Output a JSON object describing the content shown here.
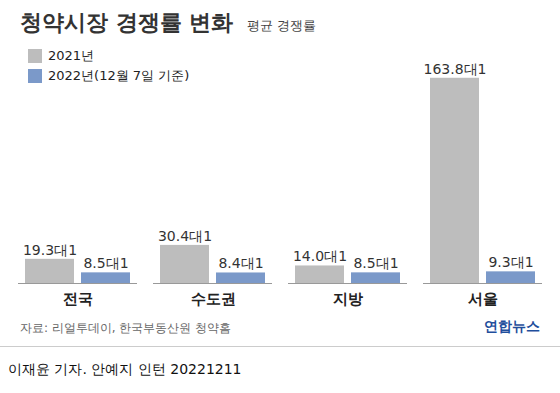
{
  "chart_data": {
    "type": "bar",
    "title": "청약시장 경쟁률 변화",
    "subtitle": "평균 경쟁률",
    "categories": [
      "전국",
      "수도권",
      "지방",
      "서울"
    ],
    "series": [
      {
        "name": "2021년",
        "color": "#bdbdbd",
        "values": [
          19.3,
          30.4,
          14.0,
          163.8
        ],
        "value_labels": [
          "19.3대1",
          "30.4대1",
          "14.0대1",
          "163.8대1"
        ]
      },
      {
        "name": "2022년(12월 7일 기준)",
        "color": "#7b99c9",
        "values": [
          8.5,
          8.4,
          8.5,
          9.3
        ],
        "value_labels": [
          "8.5대1",
          "8.4대1",
          "8.5대1",
          "9.3대1"
        ]
      }
    ],
    "ylim": [
      0,
      170
    ],
    "data_labels": true,
    "tick_labels": "x",
    "legend": "top-left",
    "source": "자료: 리얼투데이, 한국부동산원 청약홈",
    "credit": "연합뉴스",
    "byline": "이재윤 기자. 안예지 인턴 20221211"
  }
}
